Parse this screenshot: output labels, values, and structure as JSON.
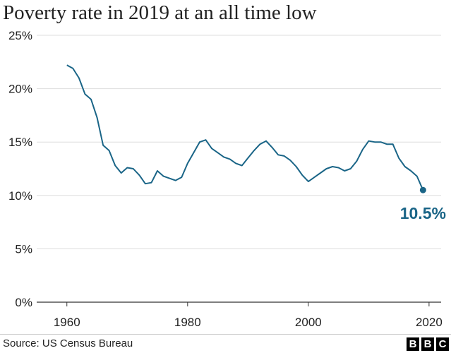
{
  "title": "Poverty rate in 2019 at an all time low",
  "source": "Source: US Census Bureau",
  "logo_letters": [
    "B",
    "B",
    "C"
  ],
  "colors": {
    "line": "#1a6587",
    "grid": "#dddddd",
    "axis": "#333333",
    "text": "#222222"
  },
  "chart_data": {
    "type": "line",
    "title": "Poverty rate in 2019 at an all time low",
    "xlabel": "",
    "ylabel": "",
    "xlim": [
      1955,
      2022
    ],
    "ylim": [
      0,
      25
    ],
    "x_ticks": [
      1960,
      1980,
      2000,
      2020
    ],
    "x_tick_labels": [
      "1960",
      "1980",
      "2000",
      "2020"
    ],
    "y_ticks": [
      0,
      5,
      10,
      15,
      20,
      25
    ],
    "y_tick_labels": [
      "0%",
      "5%",
      "10%",
      "15%",
      "20%",
      "25%"
    ],
    "grid": true,
    "series": [
      {
        "name": "Poverty rate",
        "x": [
          1960,
          1961,
          1962,
          1963,
          1964,
          1965,
          1966,
          1967,
          1968,
          1969,
          1970,
          1971,
          1972,
          1973,
          1974,
          1975,
          1976,
          1977,
          1978,
          1979,
          1980,
          1981,
          1982,
          1983,
          1984,
          1985,
          1986,
          1987,
          1988,
          1989,
          1990,
          1991,
          1992,
          1993,
          1994,
          1995,
          1996,
          1997,
          1998,
          1999,
          2000,
          2001,
          2002,
          2003,
          2004,
          2005,
          2006,
          2007,
          2008,
          2009,
          2010,
          2011,
          2012,
          2013,
          2014,
          2015,
          2016,
          2017,
          2018,
          2019
        ],
        "values": [
          22.2,
          21.9,
          21.0,
          19.5,
          19.0,
          17.3,
          14.7,
          14.2,
          12.8,
          12.1,
          12.6,
          12.5,
          11.9,
          11.1,
          11.2,
          12.3,
          11.8,
          11.6,
          11.4,
          11.7,
          13.0,
          14.0,
          15.0,
          15.2,
          14.4,
          14.0,
          13.6,
          13.4,
          13.0,
          12.8,
          13.5,
          14.2,
          14.8,
          15.1,
          14.5,
          13.8,
          13.7,
          13.3,
          12.7,
          11.9,
          11.3,
          11.7,
          12.1,
          12.5,
          12.7,
          12.6,
          12.3,
          12.5,
          13.2,
          14.3,
          15.1,
          15.0,
          15.0,
          14.8,
          14.8,
          13.5,
          12.7,
          12.3,
          11.8,
          10.5
        ]
      }
    ],
    "annotation": {
      "x": 2019,
      "y": 10.5,
      "label": "10.5%"
    }
  }
}
